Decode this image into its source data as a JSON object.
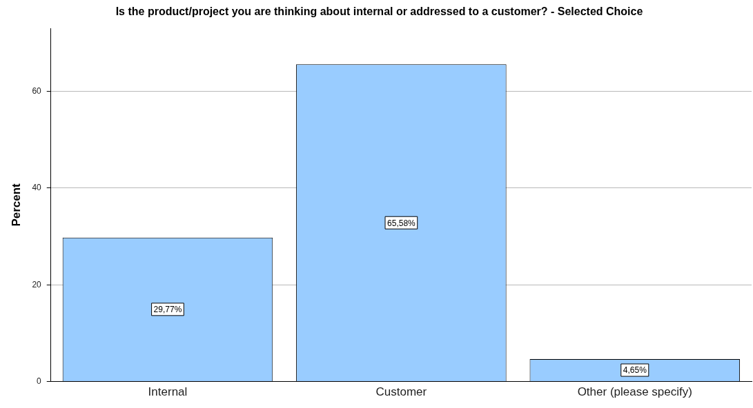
{
  "chart_data": {
    "type": "bar",
    "title": "Is the product/project you are thinking about internal or addressed to a customer? - Selected Choice",
    "ylabel": "Percent",
    "categories": [
      "Internal",
      "Customer",
      "Other (please specify)"
    ],
    "values": [
      29.77,
      65.58,
      4.65
    ],
    "value_labels": [
      "29,77%",
      "65,58%",
      "4,65%"
    ],
    "color": "#99ccff",
    "ylim": [
      0,
      73
    ],
    "yticks": [
      0,
      20,
      40,
      60
    ],
    "grid": "y",
    "legend": false
  }
}
